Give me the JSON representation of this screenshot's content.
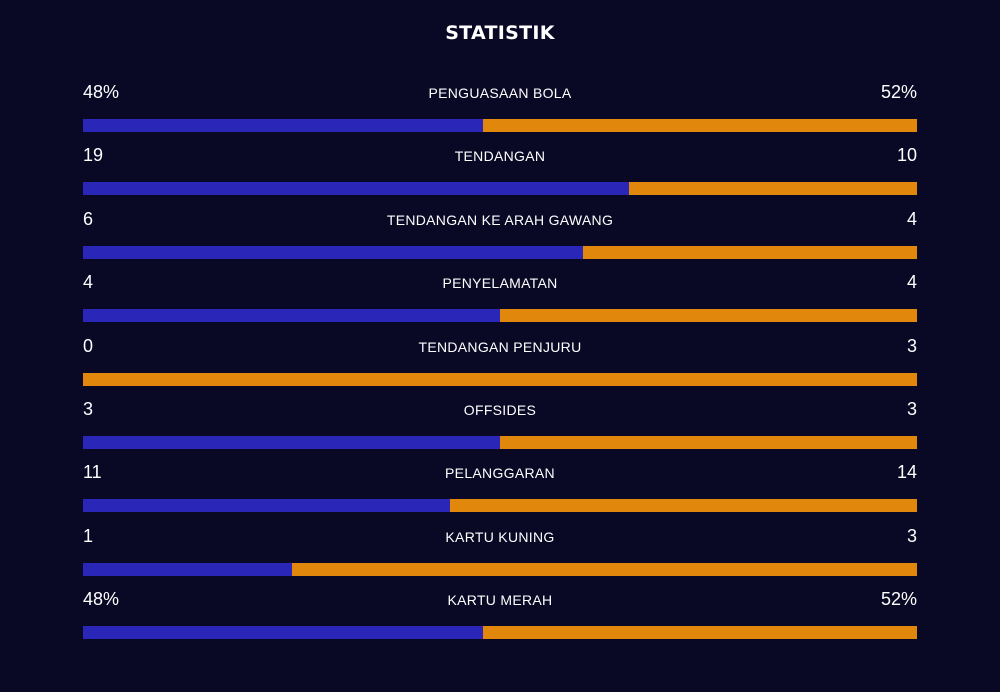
{
  "header": {
    "title": "STATISTIK"
  },
  "colors": {
    "background": "#090825",
    "home": "#2a27b8",
    "away": "#e0870c",
    "text": "#ffffff"
  },
  "stats": [
    {
      "label": "PENGUASAAN BOLA",
      "left": "48%",
      "right": "52%",
      "left_share": 0.48
    },
    {
      "label": "TENDANGAN",
      "left": "19",
      "right": "10",
      "left_share": 0.655
    },
    {
      "label": "TENDANGAN KE ARAH GAWANG",
      "left": "6",
      "right": "4",
      "left_share": 0.6
    },
    {
      "label": "PENYELAMATAN",
      "left": "4",
      "right": "4",
      "left_share": 0.5
    },
    {
      "label": "TENDANGAN PENJURU",
      "left": "0",
      "right": "3",
      "left_share": 0.0
    },
    {
      "label": "OFFSIDES",
      "left": "3",
      "right": "3",
      "left_share": 0.5
    },
    {
      "label": "PELANGGARAN",
      "left": "11",
      "right": "14",
      "left_share": 0.44
    },
    {
      "label": "KARTU KUNING",
      "left": "1",
      "right": "3",
      "left_share": 0.25
    },
    {
      "label": "KARTU MERAH",
      "left": "48%",
      "right": "52%",
      "left_share": 0.48
    }
  ]
}
